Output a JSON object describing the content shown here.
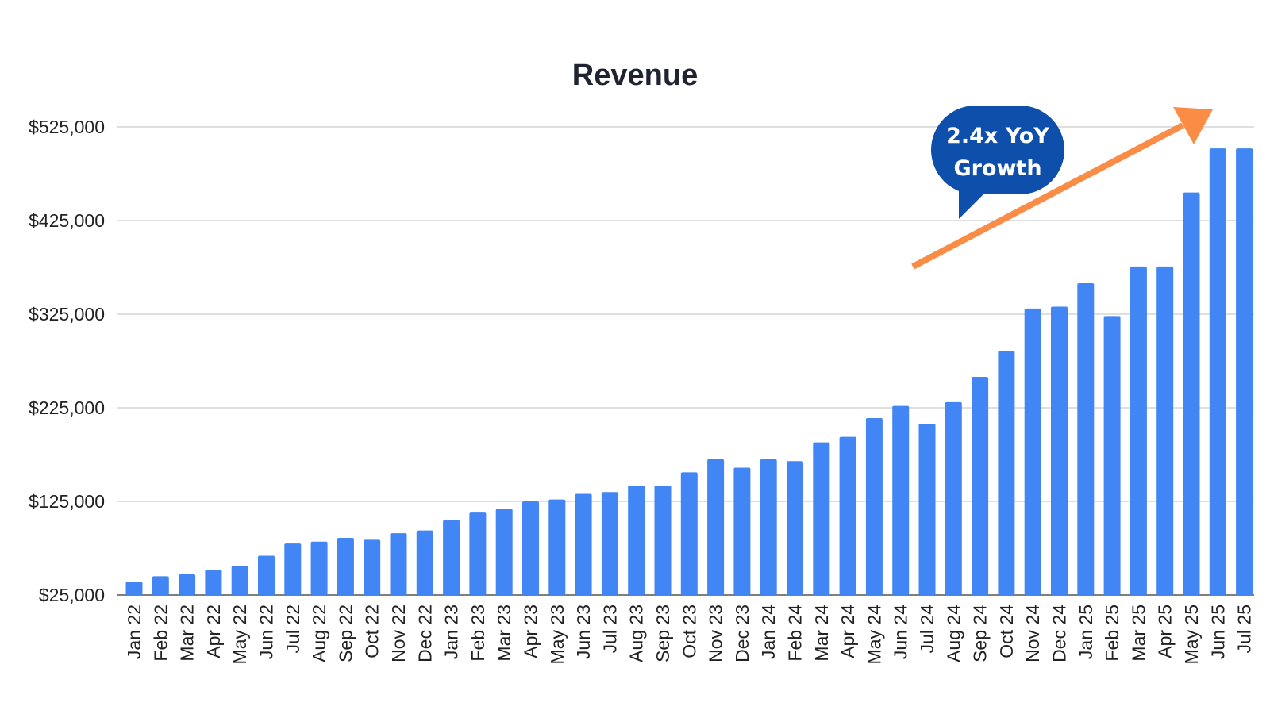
{
  "chart_data": {
    "type": "bar",
    "title": "Revenue",
    "xlabel": "",
    "ylabel": "",
    "ylim": [
      25000,
      545000
    ],
    "y_ticks": [
      25000,
      125000,
      225000,
      325000,
      425000,
      525000
    ],
    "y_tick_labels": [
      "$25,000",
      "$125,000",
      "$225,000",
      "$325,000",
      "$425,000",
      "$525,000"
    ],
    "grid": true,
    "categories": [
      "Jan 22",
      "Feb 22",
      "Mar 22",
      "Apr 22",
      "May 22",
      "Jun 22",
      "Jul 22",
      "Aug 22",
      "Sep 22",
      "Oct 22",
      "Nov 22",
      "Dec 22",
      "Jan 23",
      "Feb 23",
      "Mar 23",
      "Apr 23",
      "May 23",
      "Jun 23",
      "Jul 23",
      "Aug 23",
      "Sep 23",
      "Oct 23",
      "Nov 23",
      "Dec 23",
      "Jan 24",
      "Feb 24",
      "Mar 24",
      "Apr 24",
      "May 24",
      "Jun 24",
      "Jul 24",
      "Aug 24",
      "Sep 24",
      "Oct 24",
      "Nov 24",
      "Dec 24",
      "Jan 25",
      "Feb 25",
      "Mar 25",
      "Apr 25",
      "May 25",
      "Jun 25",
      "Jul 25"
    ],
    "values": [
      39000,
      45000,
      47000,
      52000,
      56000,
      67000,
      80000,
      82000,
      86000,
      84000,
      91000,
      94000,
      105000,
      113000,
      117000,
      125000,
      127000,
      133000,
      135000,
      142000,
      142000,
      156000,
      170000,
      161000,
      170000,
      168000,
      188000,
      194000,
      214000,
      227000,
      208000,
      231000,
      258000,
      286000,
      331000,
      333000,
      358000,
      323000,
      376000,
      376000,
      455000,
      502000,
      502000
    ],
    "bar_color": "#4285f4",
    "annotations": [
      {
        "type": "callout",
        "text_lines": [
          "2.4x YoY",
          "Growth"
        ],
        "color": "#0d4faa"
      },
      {
        "type": "arrow",
        "color": "#fb8c45",
        "from_category": "Jul 24",
        "to_category": "May 25"
      }
    ]
  }
}
